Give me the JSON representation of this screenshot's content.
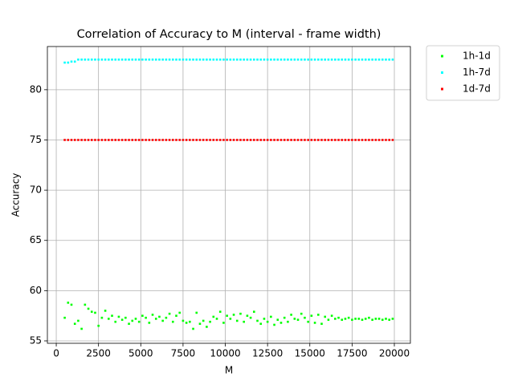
{
  "chart_data": {
    "type": "scatter",
    "title": "Correlation of Accuracy to M (interval - frame width)",
    "x_label": "M",
    "y_label": "Accuracy",
    "x": [
      500,
      700,
      900,
      1100,
      1300,
      1500,
      1700,
      1900,
      2100,
      2300,
      2500,
      2700,
      2900,
      3100,
      3300,
      3500,
      3700,
      3900,
      4100,
      4300,
      4500,
      4700,
      4900,
      5100,
      5300,
      5500,
      5700,
      5900,
      6100,
      6300,
      6500,
      6700,
      6900,
      7100,
      7300,
      7500,
      7700,
      7900,
      8100,
      8300,
      8500,
      8700,
      8900,
      9100,
      9300,
      9500,
      9700,
      9900,
      10100,
      10300,
      10500,
      10700,
      10900,
      11100,
      11300,
      11500,
      11700,
      11900,
      12100,
      12300,
      12500,
      12700,
      12900,
      13100,
      13300,
      13500,
      13700,
      13900,
      14100,
      14300,
      14500,
      14700,
      14900,
      15100,
      15300,
      15500,
      15700,
      15900,
      16100,
      16300,
      16500,
      16700,
      16900,
      17100,
      17300,
      17500,
      17700,
      17900,
      18100,
      18300,
      18500,
      18700,
      18900,
      19100,
      19300,
      19500,
      19700,
      19900
    ],
    "series": [
      {
        "name": "1h-1d",
        "color": "#00ff00",
        "values": [
          57.3,
          58.8,
          58.6,
          56.7,
          57.0,
          56.2,
          58.6,
          58.2,
          57.9,
          57.8,
          56.5,
          57.3,
          58.0,
          57.2,
          57.5,
          56.9,
          57.4,
          57.1,
          57.3,
          56.7,
          57.0,
          57.2,
          56.9,
          57.5,
          57.3,
          56.8,
          57.6,
          57.2,
          57.4,
          57.0,
          57.3,
          57.7,
          56.9,
          57.5,
          57.8,
          57.0,
          56.8,
          56.9,
          56.2,
          57.8,
          56.7,
          57.0,
          56.4,
          56.9,
          57.4,
          57.2,
          57.9,
          56.8,
          57.5,
          57.2,
          57.6,
          57.0,
          57.7,
          56.9,
          57.5,
          57.3,
          57.9,
          57.0,
          56.7,
          57.2,
          56.9,
          57.4,
          56.6,
          57.1,
          56.8,
          57.3,
          56.9,
          57.6,
          57.2,
          57.1,
          57.7,
          57.3,
          56.9,
          57.5,
          56.8,
          57.6,
          56.7,
          57.4,
          57.1,
          57.5,
          57.2,
          57.3,
          57.1,
          57.2,
          57.3,
          57.1,
          57.2,
          57.2,
          57.1,
          57.2,
          57.3,
          57.1,
          57.2,
          57.2,
          57.1,
          57.2,
          57.1,
          57.2
        ]
      },
      {
        "name": "1h-7d",
        "color": "#00ffff",
        "values": [
          82.7,
          82.7,
          82.8,
          82.8,
          83.0,
          83.0,
          83.0,
          83.0,
          83.0,
          83.0,
          83.0,
          83.0,
          83.0,
          83.0,
          83.0,
          83.0,
          83.0,
          83.0,
          83.0,
          83.0,
          83.0,
          83.0,
          83.0,
          83.0,
          83.0,
          83.0,
          83.0,
          83.0,
          83.0,
          83.0,
          83.0,
          83.0,
          83.0,
          83.0,
          83.0,
          83.0,
          83.0,
          83.0,
          83.0,
          83.0,
          83.0,
          83.0,
          83.0,
          83.0,
          83.0,
          83.0,
          83.0,
          83.0,
          83.0,
          83.0,
          83.0,
          83.0,
          83.0,
          83.0,
          83.0,
          83.0,
          83.0,
          83.0,
          83.0,
          83.0,
          83.0,
          83.0,
          83.0,
          83.0,
          83.0,
          83.0,
          83.0,
          83.0,
          83.0,
          83.0,
          83.0,
          83.0,
          83.0,
          83.0,
          83.0,
          83.0,
          83.0,
          83.0,
          83.0,
          83.0,
          83.0,
          83.0,
          83.0,
          83.0,
          83.0,
          83.0,
          83.0,
          83.0,
          83.0,
          83.0,
          83.0,
          83.0,
          83.0,
          83.0,
          83.0,
          83.0,
          83.0,
          83.0
        ]
      },
      {
        "name": "1d-7d",
        "color": "#ff0000",
        "values": [
          75.0,
          75.0,
          75.0,
          75.0,
          75.0,
          75.0,
          75.0,
          75.0,
          75.0,
          75.0,
          75.0,
          75.0,
          75.0,
          75.0,
          75.0,
          75.0,
          75.0,
          75.0,
          75.0,
          75.0,
          75.0,
          75.0,
          75.0,
          75.0,
          75.0,
          75.0,
          75.0,
          75.0,
          75.0,
          75.0,
          75.0,
          75.0,
          75.0,
          75.0,
          75.0,
          75.0,
          75.0,
          75.0,
          75.0,
          75.0,
          75.0,
          75.0,
          75.0,
          75.0,
          75.0,
          75.0,
          75.0,
          75.0,
          75.0,
          75.0,
          75.0,
          75.0,
          75.0,
          75.0,
          75.0,
          75.0,
          75.0,
          75.0,
          75.0,
          75.0,
          75.0,
          75.0,
          75.0,
          75.0,
          75.0,
          75.0,
          75.0,
          75.0,
          75.0,
          75.0,
          75.0,
          75.0,
          75.0,
          75.0,
          75.0,
          75.0,
          75.0,
          75.0,
          75.0,
          75.0,
          75.0,
          75.0,
          75.0,
          75.0,
          75.0,
          75.0,
          75.0,
          75.0,
          75.0,
          75.0,
          75.0,
          75.0,
          75.0,
          75.0,
          75.0,
          75.0,
          75.0,
          75.0
        ]
      }
    ],
    "xlim": [
      -525,
      20950
    ],
    "ylim": [
      54.76,
      84.3
    ],
    "xticks": [
      0,
      2500,
      5000,
      7500,
      10000,
      12500,
      15000,
      17500,
      20000
    ],
    "yticks": [
      55,
      60,
      65,
      70,
      75,
      80
    ],
    "grid": true,
    "legend": "outside-upper-right"
  }
}
